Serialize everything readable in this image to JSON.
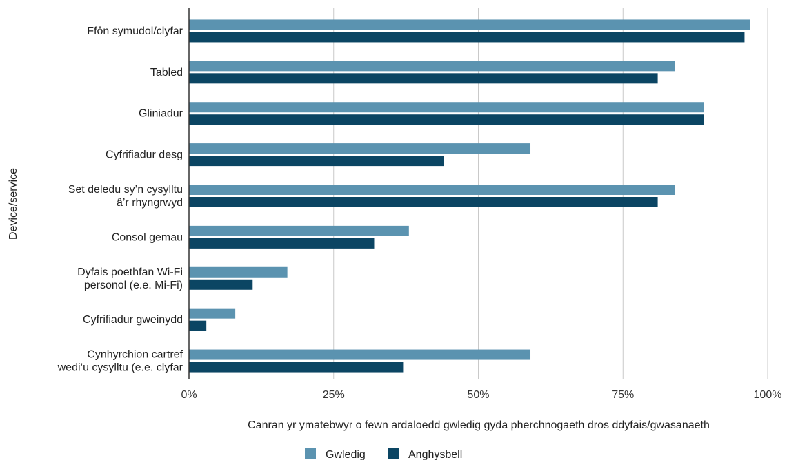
{
  "chart_data": {
    "type": "bar",
    "orientation": "horizontal",
    "categories": [
      [
        "Ffôn symudol/clyfar"
      ],
      [
        "Tabled"
      ],
      [
        "Gliniadur"
      ],
      [
        "Cyfrifiadur desg"
      ],
      [
        "Set deledu sy’n cysylltu",
        "â’r rhyngrwyd"
      ],
      [
        "Consol gemau"
      ],
      [
        "Dyfais poethfan Wi-Fi",
        "personol (e.e. Mi-Fi)"
      ],
      [
        "Cyfrifiadur gweinydd"
      ],
      [
        "Cynhyrchion cartref",
        "wedi’u cysylltu (e.e. clyfar"
      ]
    ],
    "series": [
      {
        "name": "Gwledig",
        "color": "#5b93b0",
        "values": [
          97,
          84,
          89,
          59,
          84,
          38,
          17,
          8,
          59
        ]
      },
      {
        "name": "Anghysbell",
        "color": "#0b4563",
        "values": [
          96,
          81,
          89,
          44,
          81,
          32,
          11,
          3,
          37
        ]
      }
    ],
    "xlim": [
      0,
      100
    ],
    "xticks": [
      "0%",
      "25%",
      "50%",
      "75%",
      "100%"
    ],
    "xlabel": "Canran yr ymatebwyr o fewn ardaloedd gwledig gyda pherchnogaeth dros ddyfais/gwasanaeth",
    "ylabel": "Device/service",
    "grid": "vertical",
    "legend_position": "bottom"
  }
}
